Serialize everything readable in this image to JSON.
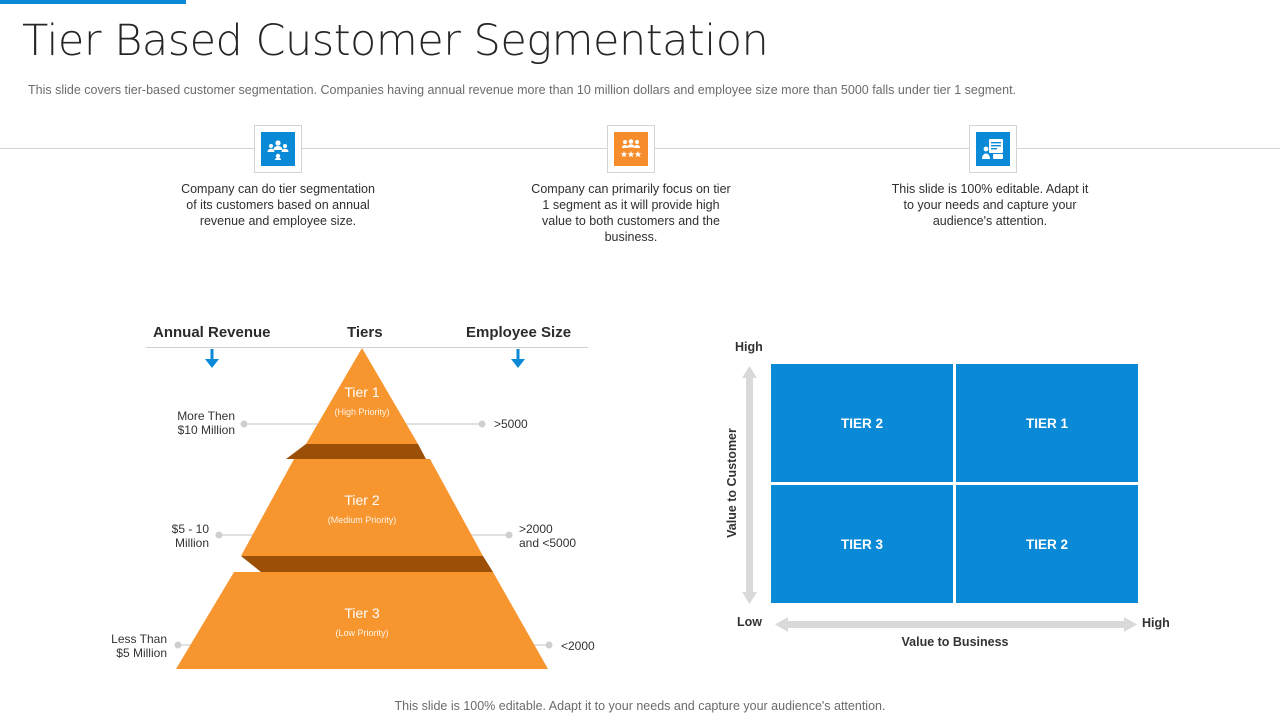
{
  "header": {
    "title": "Tier Based Customer Segmentation",
    "subtitle": "This slide covers tier-based customer segmentation. Companies having annual revenue  more than 10 million dollars and employee size more than 5000 falls under tier 1 segment."
  },
  "features": [
    {
      "icon": "customer-group-icon",
      "icon_color": "#0a8ad6",
      "text": "Company can do tier segmentation of its customers based on annual revenue  and employee size."
    },
    {
      "icon": "rated-team-icon",
      "icon_color": "#f58d2c",
      "text": "Company can primarily focus on tier 1 segment as it will provide high value to both customers and the business."
    },
    {
      "icon": "presentation-icon",
      "icon_color": "#0a8ad6",
      "text": "This slide is 100% editable. Adapt it to your needs and capture your audience's attention."
    }
  ],
  "pyramid": {
    "headers": {
      "left": "Annual Revenue",
      "center": "Tiers",
      "right": "Employee Size"
    },
    "tiers": [
      {
        "name": "Tier 1",
        "priority": "(High Priority)",
        "revenue": "More Then\n$10 Million",
        "employees": ">5000"
      },
      {
        "name": "Tier 2",
        "priority": "(Medium Priority)",
        "revenue": "$5 - 10\nMillion",
        "employees": ">2000\nand <5000"
      },
      {
        "name": "Tier 3",
        "priority": "(Low Priority)",
        "revenue": "Less Than\n$5 Million",
        "employees": "<2000"
      }
    ],
    "colors": {
      "face": "#f7952f",
      "shadow": "#9c4f06",
      "arrow": "#0a8ad6"
    }
  },
  "matrix": {
    "y_axis": {
      "label": "Value to Customer",
      "high": "High",
      "low": "Low"
    },
    "x_axis": {
      "label": "Value to Business",
      "high": "High"
    },
    "cells": {
      "top_left": "TIER 2",
      "top_right": "TIER 1",
      "bottom_left": "TIER 3",
      "bottom_right": "TIER 2"
    },
    "cell_color": "#0a8ad6"
  },
  "footer": "This slide is 100% editable. Adapt it to your needs and capture your audience's attention."
}
